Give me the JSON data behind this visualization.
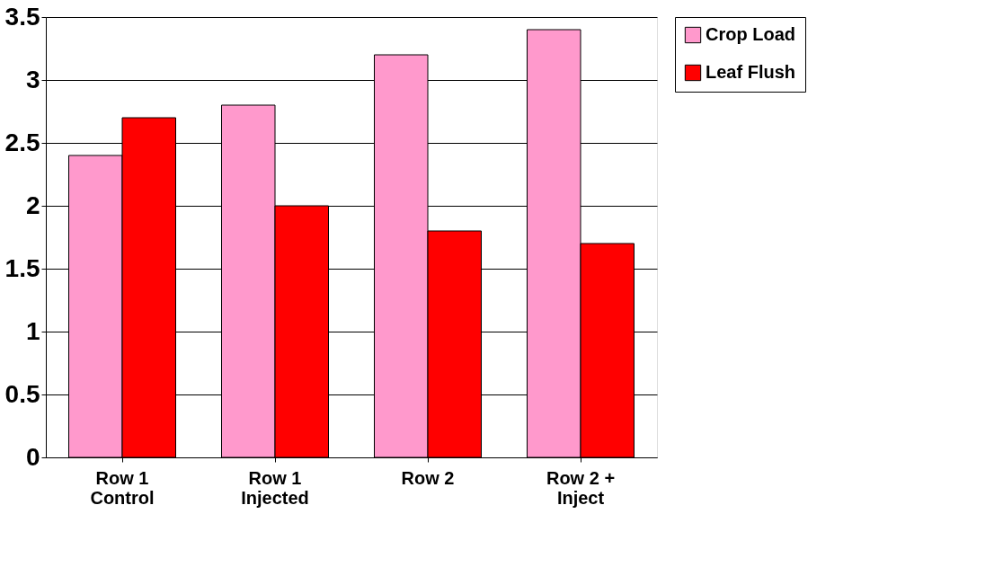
{
  "chart_data": {
    "type": "bar",
    "categories": [
      "Row 1 Control",
      "Row 1 Injected",
      "Row 2",
      "Row 2 + Inject"
    ],
    "series": [
      {
        "name": "Crop Load",
        "color": "#ff99cc",
        "values": [
          2.4,
          2.8,
          3.2,
          3.4
        ]
      },
      {
        "name": "Leaf Flush",
        "color": "#ff0000",
        "values": [
          2.7,
          2.0,
          1.8,
          1.7
        ]
      }
    ],
    "ylim": [
      0,
      3.5
    ],
    "yticks": [
      0,
      0.5,
      1,
      1.5,
      2,
      2.5,
      3,
      3.5
    ],
    "grid": "y",
    "legend": "right"
  }
}
